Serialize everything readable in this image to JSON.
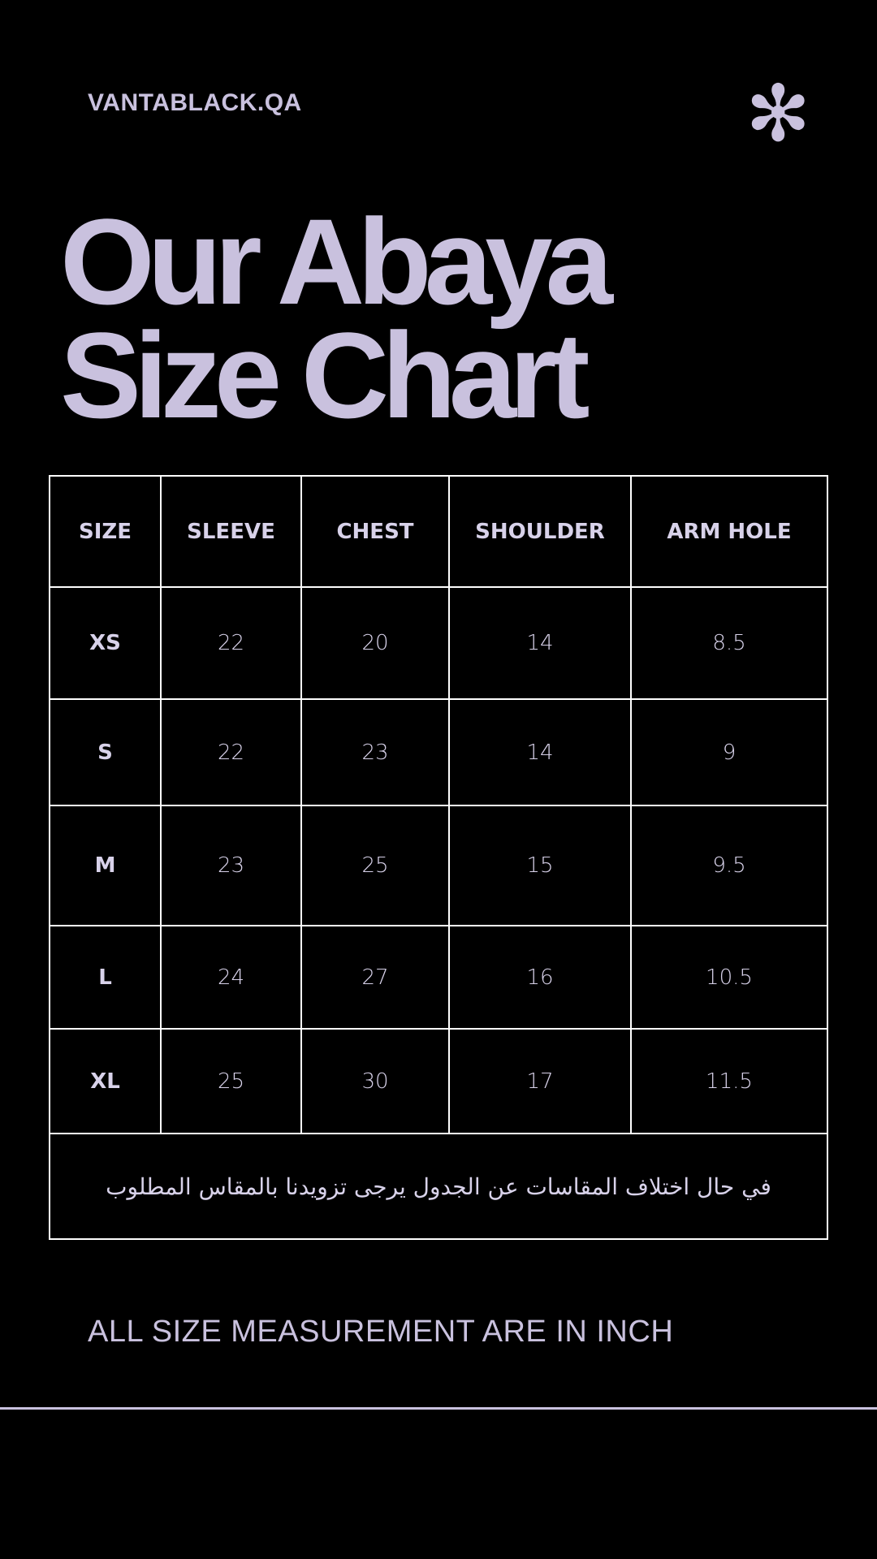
{
  "brand": "VANTABLACK.QA",
  "icon": "asterisk-icon",
  "title": {
    "line1": "Our Abaya",
    "line2": "Size Chart"
  },
  "table": {
    "headers": [
      "SIZE",
      "SLEEVE",
      "CHEST",
      "SHOULDER",
      "ARM HOLE"
    ],
    "rows": [
      [
        "XS",
        "22",
        "20",
        "14",
        "8.5"
      ],
      [
        "S",
        "22",
        "23",
        "14",
        "9"
      ],
      [
        "M",
        "23",
        "25",
        "15",
        "9.5"
      ],
      [
        "L",
        "24",
        "27",
        "16",
        "10.5"
      ],
      [
        "XL",
        "25",
        "30",
        "17",
        "11.5"
      ]
    ],
    "note": "في حال اختلاف المقاسات عن الجدول يرجى تزويدنا بالمقاس المطلوب"
  },
  "footer": "ALL SIZE MEASUREMENT ARE IN INCH",
  "colors": {
    "accent": "#c9c1de",
    "background": "#000000",
    "border": "#ffffff"
  }
}
